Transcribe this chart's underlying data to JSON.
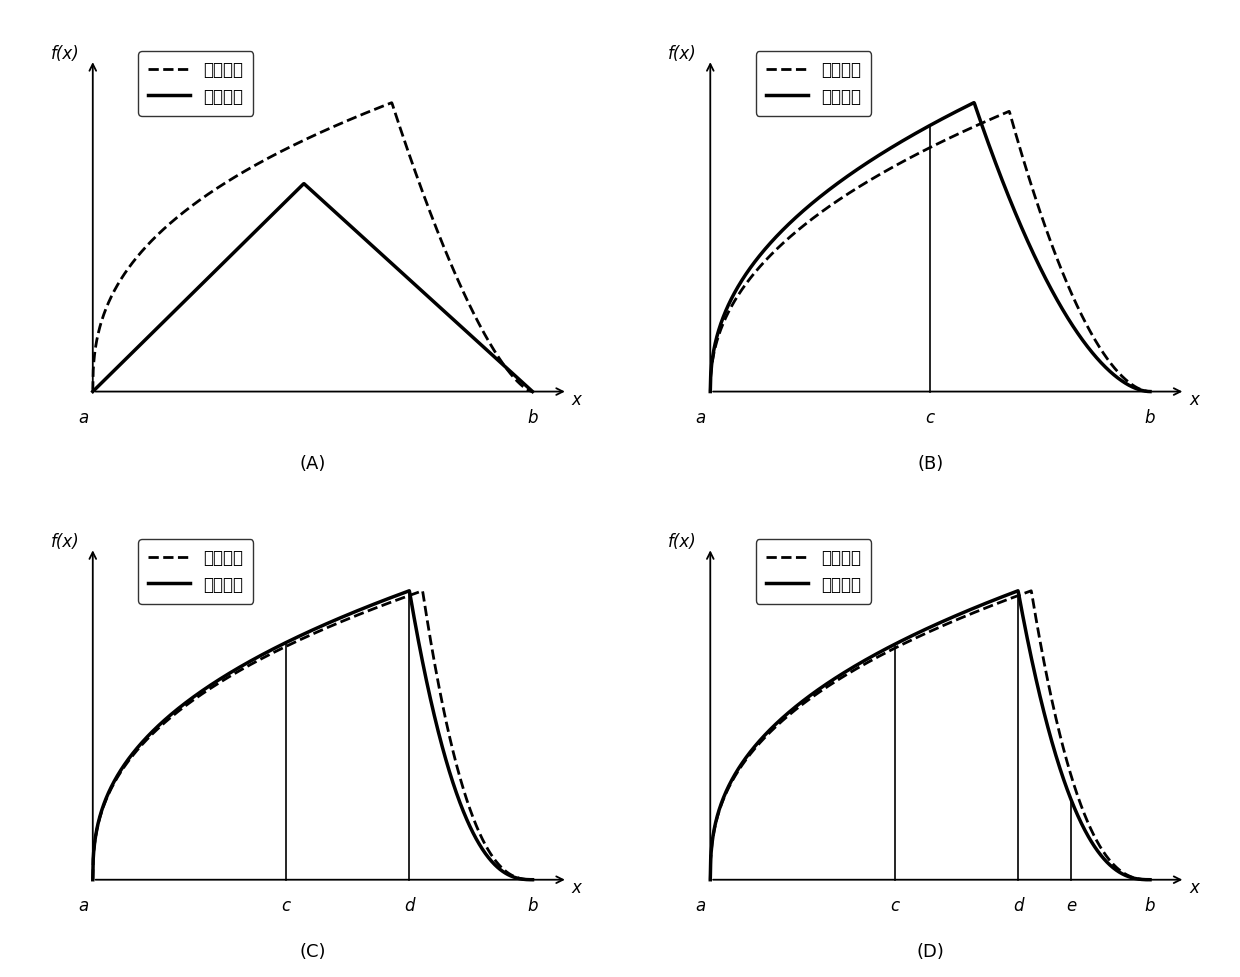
{
  "panel_labels": [
    "(A)",
    "(B)",
    "(C)",
    "(D)"
  ],
  "legend_label1": "原始函数",
  "legend_label2": "积分函数",
  "bg_color": "#ffffff"
}
